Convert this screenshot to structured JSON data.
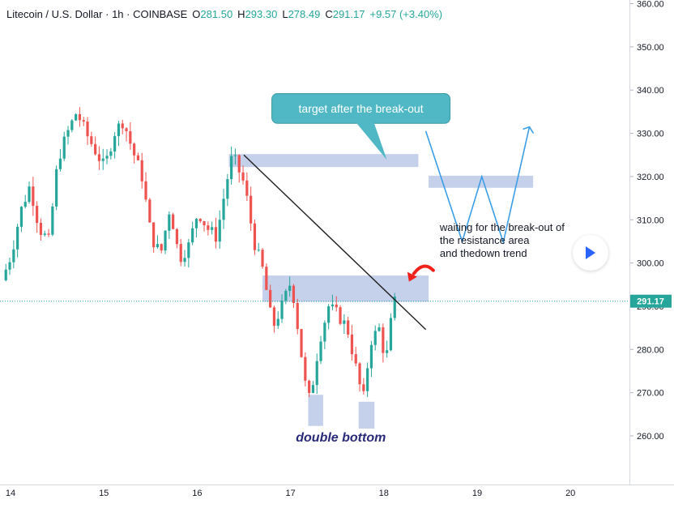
{
  "header": {
    "symbol": "Litecoin / U.S. Dollar",
    "interval": "1h",
    "exchange": "COINBASE",
    "open_label": "O",
    "open": "281.50",
    "high_label": "H",
    "high": "293.30",
    "low_label": "L",
    "low": "278.49",
    "close_label": "C",
    "close": "291.17",
    "change": "+9.57 (+3.40%)"
  },
  "colors": {
    "up": "#26a69a",
    "down": "#ef5350",
    "zone": "#b2c0e4",
    "callout": "#4fb8c4",
    "path": "#3c9ee6",
    "trend": "#1e1e1e",
    "arrow": "#f0201a",
    "double_bottom_text": "#2a2a7a"
  },
  "chart_data": {
    "type": "candlestick",
    "x_ticks": [
      "14",
      "15",
      "16",
      "17",
      "18",
      "19",
      "20"
    ],
    "y_ticks": [
      "260.00",
      "270.00",
      "280.00",
      "290.00",
      "300.00",
      "310.00",
      "320.00",
      "330.00",
      "340.00",
      "350.00",
      "360.00"
    ],
    "ylim": [
      250,
      360
    ],
    "last_price": 291.17,
    "last_price_label": "291.17",
    "close_path": [
      [
        13.95,
        296
      ],
      [
        14.05,
        302
      ],
      [
        14.15,
        312
      ],
      [
        14.25,
        318
      ],
      [
        14.35,
        308
      ],
      [
        14.45,
        305
      ],
      [
        14.55,
        324
      ],
      [
        14.65,
        330
      ],
      [
        14.75,
        335
      ],
      [
        14.85,
        330
      ],
      [
        14.95,
        326
      ],
      [
        15.05,
        322
      ],
      [
        15.15,
        330
      ],
      [
        15.25,
        333
      ],
      [
        15.35,
        326
      ],
      [
        15.45,
        320
      ],
      [
        15.55,
        306
      ],
      [
        15.65,
        302
      ],
      [
        15.75,
        313
      ],
      [
        15.85,
        301
      ],
      [
        15.95,
        304
      ],
      [
        16.05,
        312
      ],
      [
        16.15,
        308
      ],
      [
        16.25,
        306
      ],
      [
        16.35,
        318
      ],
      [
        16.42,
        325
      ],
      [
        16.55,
        318
      ],
      [
        16.65,
        305
      ],
      [
        16.75,
        298
      ],
      [
        16.85,
        285
      ],
      [
        16.95,
        290
      ],
      [
        17.05,
        296
      ],
      [
        17.12,
        285
      ],
      [
        17.2,
        272
      ],
      [
        17.25,
        268
      ],
      [
        17.35,
        282
      ],
      [
        17.45,
        290
      ],
      [
        17.55,
        288
      ],
      [
        17.65,
        285
      ],
      [
        17.75,
        275
      ],
      [
        17.82,
        268
      ],
      [
        17.9,
        282
      ],
      [
        18.0,
        285
      ],
      [
        18.05,
        278
      ],
      [
        18.1,
        280
      ],
      [
        18.13,
        291
      ]
    ],
    "annotations": {
      "callout": "target after the break-out",
      "note": [
        "waiting for the break-out of",
        "the resistance area",
        "and thedown trend"
      ],
      "pattern": "double bottom"
    }
  }
}
